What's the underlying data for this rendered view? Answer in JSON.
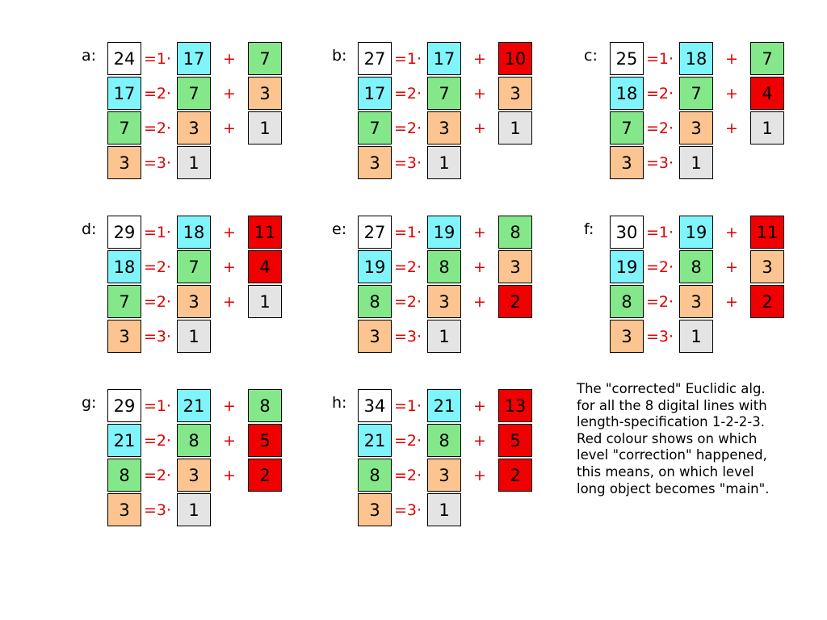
{
  "colors": {
    "white": "#ffffff",
    "cyan": "#80f4fb",
    "green": "#84e88a",
    "orange": "#fbc490",
    "red": "#f00000",
    "gray": "#e4e4e4"
  },
  "diagrams": [
    {
      "label": "a:",
      "rows": [
        {
          "lhs": {
            "v": "24",
            "c": "white"
          },
          "op": "=1·",
          "mid": {
            "v": "17",
            "c": "cyan"
          },
          "plus": "+",
          "rhs": {
            "v": "7",
            "c": "green"
          }
        },
        {
          "lhs": {
            "v": "17",
            "c": "cyan"
          },
          "op": "=2·",
          "mid": {
            "v": "7",
            "c": "green"
          },
          "plus": "+",
          "rhs": {
            "v": "3",
            "c": "orange"
          }
        },
        {
          "lhs": {
            "v": "7",
            "c": "green"
          },
          "op": "=2·",
          "mid": {
            "v": "3",
            "c": "orange"
          },
          "plus": "+",
          "rhs": {
            "v": "1",
            "c": "gray"
          }
        },
        {
          "lhs": {
            "v": "3",
            "c": "orange"
          },
          "op": "=3·",
          "mid": {
            "v": "1",
            "c": "gray"
          }
        }
      ]
    },
    {
      "label": "b:",
      "rows": [
        {
          "lhs": {
            "v": "27",
            "c": "white"
          },
          "op": "=1·",
          "mid": {
            "v": "17",
            "c": "cyan"
          },
          "plus": "+",
          "rhs": {
            "v": "10",
            "c": "red"
          }
        },
        {
          "lhs": {
            "v": "17",
            "c": "cyan"
          },
          "op": "=2·",
          "mid": {
            "v": "7",
            "c": "green"
          },
          "plus": "+",
          "rhs": {
            "v": "3",
            "c": "orange"
          }
        },
        {
          "lhs": {
            "v": "7",
            "c": "green"
          },
          "op": "=2·",
          "mid": {
            "v": "3",
            "c": "orange"
          },
          "plus": "+",
          "rhs": {
            "v": "1",
            "c": "gray"
          }
        },
        {
          "lhs": {
            "v": "3",
            "c": "orange"
          },
          "op": "=3·",
          "mid": {
            "v": "1",
            "c": "gray"
          }
        }
      ]
    },
    {
      "label": "c:",
      "rows": [
        {
          "lhs": {
            "v": "25",
            "c": "white"
          },
          "op": "=1·",
          "mid": {
            "v": "18",
            "c": "cyan"
          },
          "plus": "+",
          "rhs": {
            "v": "7",
            "c": "green"
          }
        },
        {
          "lhs": {
            "v": "18",
            "c": "cyan"
          },
          "op": "=2·",
          "mid": {
            "v": "7",
            "c": "green"
          },
          "plus": "+",
          "rhs": {
            "v": "4",
            "c": "red"
          }
        },
        {
          "lhs": {
            "v": "7",
            "c": "green"
          },
          "op": "=2·",
          "mid": {
            "v": "3",
            "c": "orange"
          },
          "plus": "+",
          "rhs": {
            "v": "1",
            "c": "gray"
          }
        },
        {
          "lhs": {
            "v": "3",
            "c": "orange"
          },
          "op": "=3·",
          "mid": {
            "v": "1",
            "c": "gray"
          }
        }
      ]
    },
    {
      "label": "d:",
      "rows": [
        {
          "lhs": {
            "v": "29",
            "c": "white"
          },
          "op": "=1·",
          "mid": {
            "v": "18",
            "c": "cyan"
          },
          "plus": "+",
          "rhs": {
            "v": "11",
            "c": "red"
          }
        },
        {
          "lhs": {
            "v": "18",
            "c": "cyan"
          },
          "op": "=2·",
          "mid": {
            "v": "7",
            "c": "green"
          },
          "plus": "+",
          "rhs": {
            "v": "4",
            "c": "red"
          }
        },
        {
          "lhs": {
            "v": "7",
            "c": "green"
          },
          "op": "=2·",
          "mid": {
            "v": "3",
            "c": "orange"
          },
          "plus": "+",
          "rhs": {
            "v": "1",
            "c": "gray"
          }
        },
        {
          "lhs": {
            "v": "3",
            "c": "orange"
          },
          "op": "=3·",
          "mid": {
            "v": "1",
            "c": "gray"
          }
        }
      ]
    },
    {
      "label": "e:",
      "rows": [
        {
          "lhs": {
            "v": "27",
            "c": "white"
          },
          "op": "=1·",
          "mid": {
            "v": "19",
            "c": "cyan"
          },
          "plus": "+",
          "rhs": {
            "v": "8",
            "c": "green"
          }
        },
        {
          "lhs": {
            "v": "19",
            "c": "cyan"
          },
          "op": "=2·",
          "mid": {
            "v": "8",
            "c": "green"
          },
          "plus": "+",
          "rhs": {
            "v": "3",
            "c": "orange"
          }
        },
        {
          "lhs": {
            "v": "8",
            "c": "green"
          },
          "op": "=2·",
          "mid": {
            "v": "3",
            "c": "orange"
          },
          "plus": "+",
          "rhs": {
            "v": "2",
            "c": "red"
          }
        },
        {
          "lhs": {
            "v": "3",
            "c": "orange"
          },
          "op": "=3·",
          "mid": {
            "v": "1",
            "c": "gray"
          }
        }
      ]
    },
    {
      "label": "f:",
      "rows": [
        {
          "lhs": {
            "v": "30",
            "c": "white"
          },
          "op": "=1·",
          "mid": {
            "v": "19",
            "c": "cyan"
          },
          "plus": "+",
          "rhs": {
            "v": "11",
            "c": "red"
          }
        },
        {
          "lhs": {
            "v": "19",
            "c": "cyan"
          },
          "op": "=2·",
          "mid": {
            "v": "8",
            "c": "green"
          },
          "plus": "+",
          "rhs": {
            "v": "3",
            "c": "orange"
          }
        },
        {
          "lhs": {
            "v": "8",
            "c": "green"
          },
          "op": "=2·",
          "mid": {
            "v": "3",
            "c": "orange"
          },
          "plus": "+",
          "rhs": {
            "v": "2",
            "c": "red"
          }
        },
        {
          "lhs": {
            "v": "3",
            "c": "orange"
          },
          "op": "=3·",
          "mid": {
            "v": "1",
            "c": "gray"
          }
        }
      ]
    },
    {
      "label": "g:",
      "rows": [
        {
          "lhs": {
            "v": "29",
            "c": "white"
          },
          "op": "=1·",
          "mid": {
            "v": "21",
            "c": "cyan"
          },
          "plus": "+",
          "rhs": {
            "v": "8",
            "c": "green"
          }
        },
        {
          "lhs": {
            "v": "21",
            "c": "cyan"
          },
          "op": "=2·",
          "mid": {
            "v": "8",
            "c": "green"
          },
          "plus": "+",
          "rhs": {
            "v": "5",
            "c": "red"
          }
        },
        {
          "lhs": {
            "v": "8",
            "c": "green"
          },
          "op": "=2·",
          "mid": {
            "v": "3",
            "c": "orange"
          },
          "plus": "+",
          "rhs": {
            "v": "2",
            "c": "red"
          }
        },
        {
          "lhs": {
            "v": "3",
            "c": "orange"
          },
          "op": "=3·",
          "mid": {
            "v": "1",
            "c": "gray"
          }
        }
      ]
    },
    {
      "label": "h:",
      "rows": [
        {
          "lhs": {
            "v": "34",
            "c": "white"
          },
          "op": "=1·",
          "mid": {
            "v": "21",
            "c": "cyan"
          },
          "plus": "+",
          "rhs": {
            "v": "13",
            "c": "red"
          }
        },
        {
          "lhs": {
            "v": "21",
            "c": "cyan"
          },
          "op": "=2·",
          "mid": {
            "v": "8",
            "c": "green"
          },
          "plus": "+",
          "rhs": {
            "v": "5",
            "c": "red"
          }
        },
        {
          "lhs": {
            "v": "8",
            "c": "green"
          },
          "op": "=2·",
          "mid": {
            "v": "3",
            "c": "orange"
          },
          "plus": "+",
          "rhs": {
            "v": "2",
            "c": "red"
          }
        },
        {
          "lhs": {
            "v": "3",
            "c": "orange"
          },
          "op": "=3·",
          "mid": {
            "v": "1",
            "c": "gray"
          }
        }
      ]
    }
  ],
  "caption": [
    "The \"corrected\" Euclidic alg.",
    "for all the 8 digital lines with",
    "length-specification 1-2-2-3.",
    "Red colour shows on which",
    "level \"correction\" happened,",
    "this means, on which level",
    "long object becomes \"main\"."
  ]
}
